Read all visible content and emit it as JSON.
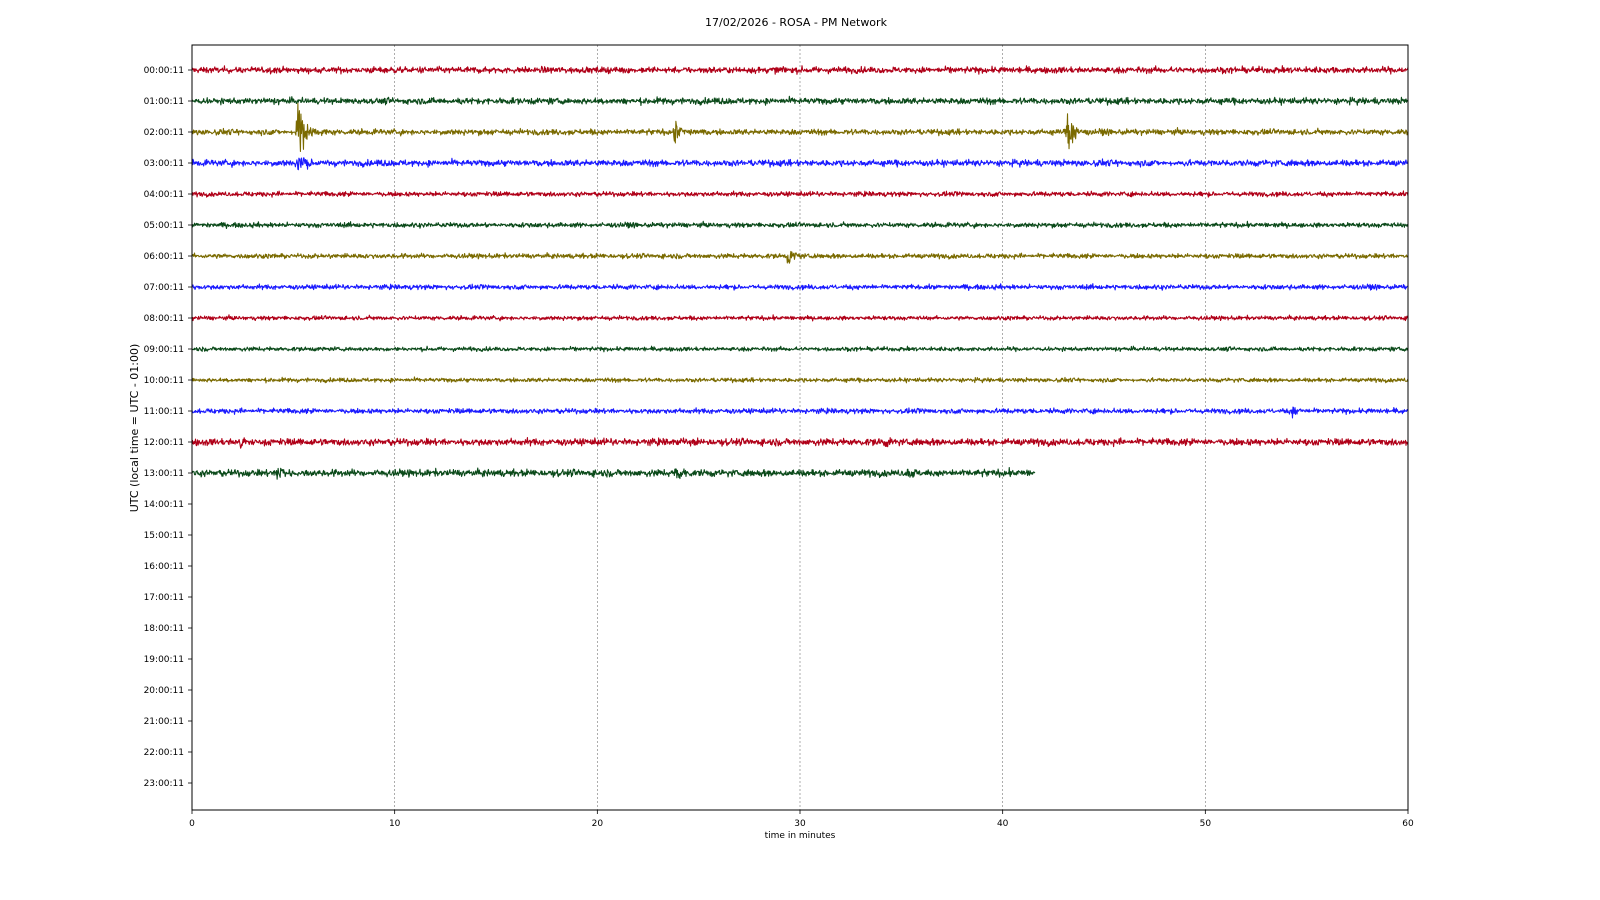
{
  "chart_data": {
    "type": "line",
    "title": "17/02/2026 - ROSA - PM Network",
    "xlabel": "time in minutes",
    "ylabel": "UTC (local time = UTC - 01:00)",
    "xlim": [
      0,
      60
    ],
    "x_ticks": [
      0,
      10,
      20,
      30,
      40,
      50,
      60
    ],
    "y_ticks": [
      "00:00:11",
      "01:00:11",
      "02:00:11",
      "03:00:11",
      "04:00:11",
      "05:00:11",
      "06:00:11",
      "07:00:11",
      "08:00:11",
      "09:00:11",
      "10:00:11",
      "11:00:11",
      "12:00:11",
      "13:00:11",
      "14:00:11",
      "15:00:11",
      "16:00:11",
      "17:00:11",
      "18:00:11",
      "19:00:11",
      "20:00:11",
      "21:00:11",
      "22:00:11",
      "23:00:11"
    ],
    "grid": "vertical",
    "colors": [
      "#b00018",
      "#0b4a1a",
      "#7a6a00",
      "#1a1aff"
    ],
    "traces": [
      {
        "row": 0,
        "end_min": 60,
        "noise": 0.2,
        "events": []
      },
      {
        "row": 1,
        "end_min": 60,
        "noise": 0.2,
        "events": []
      },
      {
        "row": 2,
        "end_min": 60,
        "noise": 0.18,
        "events": [
          {
            "t": 5.2,
            "amp": 1.8
          },
          {
            "t": 23.8,
            "amp": 0.5
          },
          {
            "t": 43.2,
            "amp": 0.9
          }
        ]
      },
      {
        "row": 3,
        "end_min": 60,
        "noise": 0.2,
        "events": [
          {
            "t": 5.2,
            "amp": 0.6
          }
        ]
      },
      {
        "row": 4,
        "end_min": 60,
        "noise": 0.15,
        "events": []
      },
      {
        "row": 5,
        "end_min": 60,
        "noise": 0.15,
        "events": []
      },
      {
        "row": 6,
        "end_min": 60,
        "noise": 0.15,
        "events": [
          {
            "t": 29.4,
            "amp": 0.4
          }
        ]
      },
      {
        "row": 7,
        "end_min": 60,
        "noise": 0.15,
        "events": []
      },
      {
        "row": 8,
        "end_min": 60,
        "noise": 0.13,
        "events": []
      },
      {
        "row": 9,
        "end_min": 60,
        "noise": 0.13,
        "events": []
      },
      {
        "row": 10,
        "end_min": 60,
        "noise": 0.13,
        "events": []
      },
      {
        "row": 11,
        "end_min": 60,
        "noise": 0.16,
        "events": [
          {
            "t": 54.3,
            "amp": 0.3
          }
        ]
      },
      {
        "row": 12,
        "end_min": 60,
        "noise": 0.22,
        "events": [
          {
            "t": 2.4,
            "amp": 0.3
          },
          {
            "t": 24.0,
            "amp": 0.25
          },
          {
            "t": 34.0,
            "amp": 0.25
          }
        ]
      },
      {
        "row": 13,
        "end_min": 41.6,
        "noise": 0.22,
        "events": [
          {
            "t": 4.2,
            "amp": 0.35
          },
          {
            "t": 23.9,
            "amp": 0.25
          },
          {
            "t": 35.3,
            "amp": 0.25
          }
        ]
      }
    ]
  }
}
